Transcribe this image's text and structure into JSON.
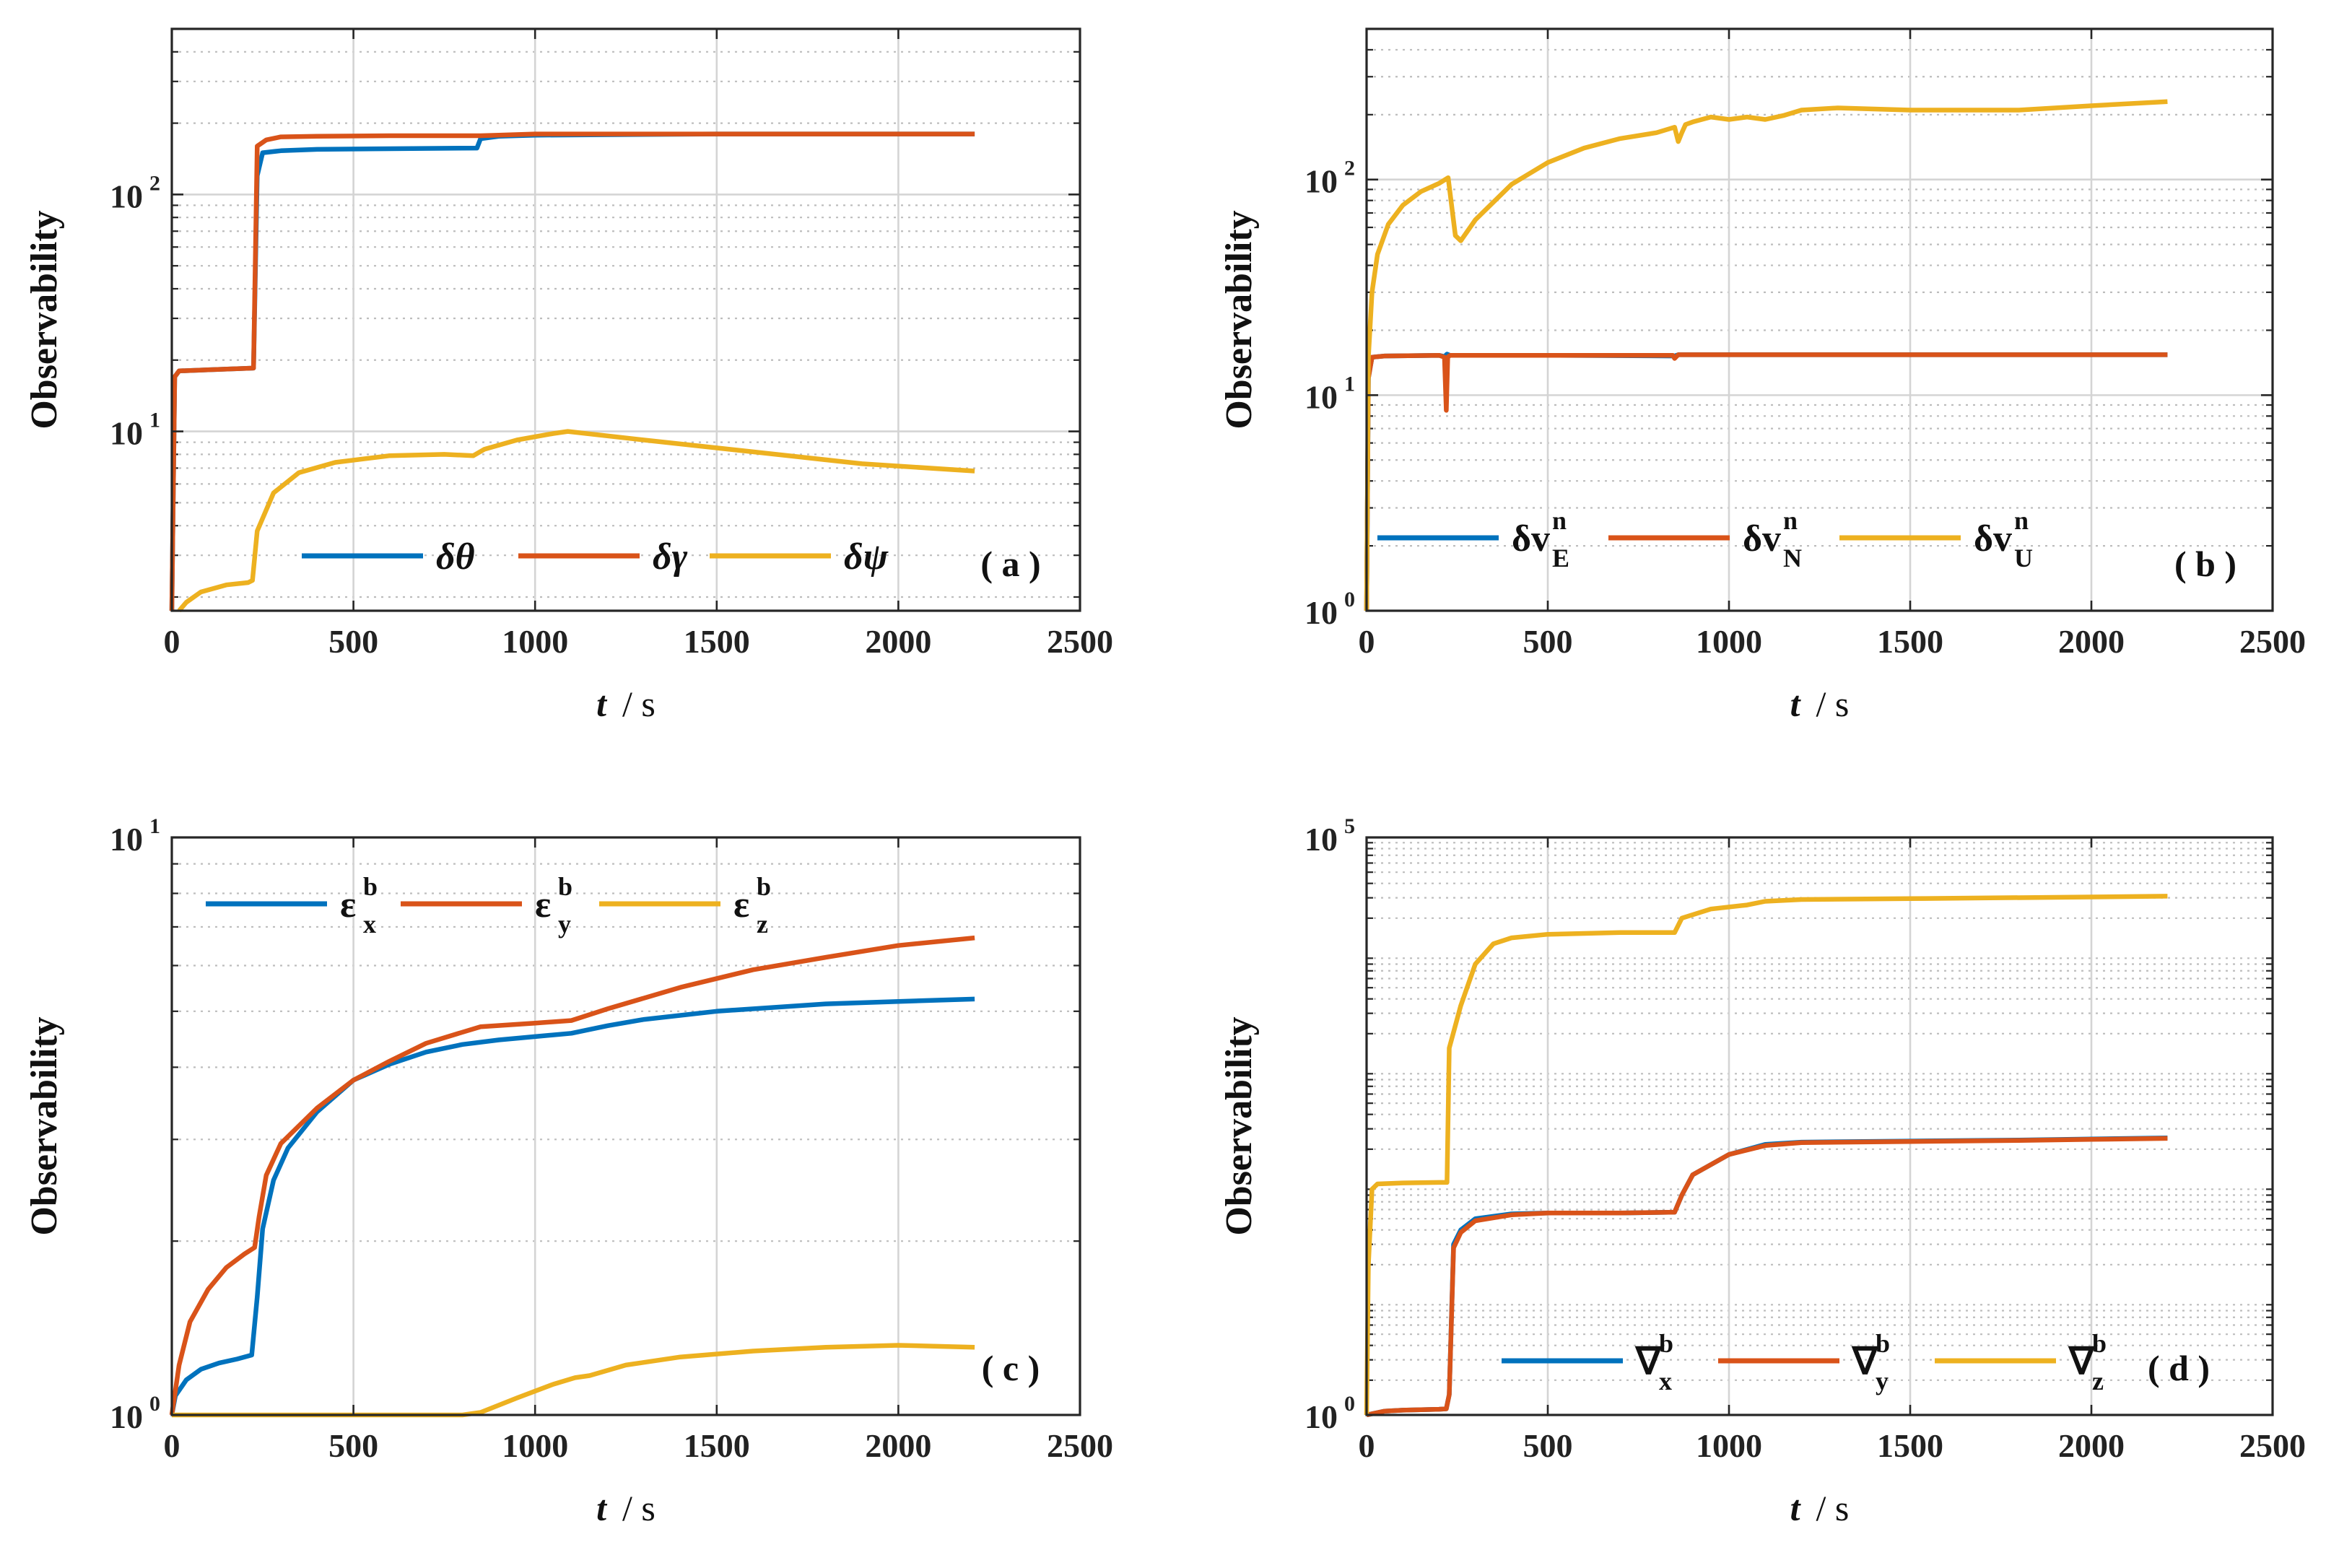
{
  "colors": {
    "blue": "#0072BD",
    "orange": "#D95319",
    "yellow": "#EDB120",
    "grid_major": "#d4d4d4",
    "grid_minor": "#bdbdbd",
    "axis": "#262626"
  },
  "chart_data": [
    {
      "id": "a",
      "type": "line",
      "scale_y": "log",
      "panel_label": "( a )",
      "ylabel": "Observability",
      "xlabel": {
        "var": "t",
        "unit": "/ s"
      },
      "xlim": [
        0,
        2500
      ],
      "ylim": [
        1.75,
        500
      ],
      "xticks": [
        0,
        500,
        1000,
        1500,
        2000,
        2500
      ],
      "yticks": [
        {
          "value": 10,
          "base": "10",
          "exp": "1"
        },
        {
          "value": 100,
          "base": "10",
          "exp": "2"
        }
      ],
      "legend": {
        "position": "bottom-right"
      },
      "series": [
        {
          "name": "δθ",
          "legend": {
            "main": "δθ",
            "sub": "",
            "sup": ""
          },
          "color": "#0072BD",
          "x": [
            0,
            8,
            20,
            100,
            225,
            235,
            250,
            300,
            400,
            600,
            840,
            850,
            900,
            1000,
            1500,
            2000,
            2210
          ],
          "y": [
            1.75,
            17,
            18,
            18.2,
            18.5,
            120,
            150,
            153,
            155,
            156,
            157,
            172,
            176,
            178,
            180,
            180,
            180
          ]
        },
        {
          "name": "δγ",
          "legend": {
            "main": "δγ",
            "sub": "",
            "sup": ""
          },
          "color": "#D95319",
          "x": [
            0,
            8,
            20,
            100,
            225,
            235,
            260,
            300,
            400,
            600,
            850,
            900,
            1000,
            1500,
            2000,
            2210
          ],
          "y": [
            1.75,
            17,
            18,
            18.2,
            18.5,
            160,
            170,
            175,
            176,
            177,
            177,
            178,
            180,
            180,
            180,
            180
          ]
        },
        {
          "name": "δψ",
          "legend": {
            "main": "δψ",
            "sub": "",
            "sup": ""
          },
          "color": "#EDB120",
          "x": [
            20,
            40,
            80,
            150,
            210,
            222,
            235,
            280,
            350,
            450,
            600,
            750,
            830,
            860,
            950,
            1050,
            1090,
            1300,
            1600,
            1900,
            2210
          ],
          "y": [
            1.75,
            1.9,
            2.1,
            2.25,
            2.3,
            2.35,
            3.8,
            5.5,
            6.7,
            7.4,
            7.9,
            8.0,
            7.9,
            8.4,
            9.2,
            9.8,
            10.0,
            9.2,
            8.2,
            7.3,
            6.8
          ]
        }
      ]
    },
    {
      "id": "b",
      "type": "line",
      "scale_y": "log",
      "panel_label": "( b )",
      "ylabel": "Observability",
      "xlabel": {
        "var": "t",
        "unit": "/ s"
      },
      "xlim": [
        0,
        2500
      ],
      "ylim": [
        1,
        500
      ],
      "xticks": [
        0,
        500,
        1000,
        1500,
        2000,
        2500
      ],
      "yticks": [
        {
          "value": 1,
          "base": "10",
          "exp": "0"
        },
        {
          "value": 10,
          "base": "10",
          "exp": "1"
        },
        {
          "value": 100,
          "base": "10",
          "exp": "2"
        }
      ],
      "legend": {
        "position": "bottom"
      },
      "series": [
        {
          "name": "δv_E^n",
          "legend": {
            "main": "δv",
            "sub": "E",
            "sup": "n"
          },
          "color": "#0072BD",
          "x": [
            0,
            5,
            15,
            50,
            200,
            215,
            222,
            230,
            500,
            850,
            860,
            1000,
            1500,
            2210
          ],
          "y": [
            1,
            12,
            15,
            15.2,
            15.3,
            15.1,
            15.5,
            15.3,
            15.3,
            15.2,
            15.4,
            15.4,
            15.4,
            15.4
          ]
        },
        {
          "name": "δv_N^n",
          "legend": {
            "main": "δv",
            "sub": "N",
            "sup": "n"
          },
          "color": "#D95319",
          "x": [
            0,
            5,
            15,
            50,
            200,
            215,
            220,
            224,
            230,
            500,
            845,
            850,
            860,
            1000,
            1500,
            2210
          ],
          "y": [
            1,
            12,
            15,
            15.2,
            15.3,
            15.0,
            8.5,
            15.0,
            15.3,
            15.3,
            15.3,
            14.8,
            15.4,
            15.4,
            15.4,
            15.4
          ]
        },
        {
          "name": "δv_U^n",
          "legend": {
            "main": "δv",
            "sub": "U",
            "sup": "n"
          },
          "color": "#EDB120",
          "x": [
            0,
            5,
            15,
            30,
            60,
            100,
            150,
            200,
            225,
            245,
            260,
            300,
            400,
            500,
            600,
            700,
            800,
            850,
            860,
            870,
            880,
            900,
            950,
            1000,
            1050,
            1100,
            1150,
            1200,
            1300,
            1500,
            1800,
            2000,
            2210
          ],
          "y": [
            1,
            15,
            30,
            45,
            62,
            76,
            88,
            96,
            102,
            55,
            52,
            65,
            95,
            120,
            140,
            155,
            165,
            175,
            150,
            165,
            180,
            185,
            195,
            190,
            195,
            190,
            198,
            210,
            215,
            210,
            210,
            220,
            230
          ]
        }
      ]
    },
    {
      "id": "c",
      "type": "line",
      "scale_y": "log",
      "panel_label": "( c )",
      "ylabel": "Observability",
      "xlabel": {
        "var": "t",
        "unit": "/ s"
      },
      "xlim": [
        0,
        2500
      ],
      "ylim": [
        1,
        10
      ],
      "xticks": [
        0,
        500,
        1000,
        1500,
        2000,
        2500
      ],
      "yticks": [
        {
          "value": 1,
          "base": "10",
          "exp": "0"
        },
        {
          "value": 10,
          "base": "10",
          "exp": "1"
        }
      ],
      "legend": {
        "position": "top-left"
      },
      "series": [
        {
          "name": "ε_x^b",
          "legend": {
            "main": "ε",
            "sub": "x",
            "sup": "b"
          },
          "color": "#0072BD",
          "x": [
            0,
            10,
            40,
            80,
            130,
            180,
            220,
            235,
            250,
            280,
            320,
            400,
            500,
            600,
            700,
            800,
            900,
            1000,
            1100,
            1200,
            1300,
            1500,
            1800,
            2000,
            2210
          ],
          "y": [
            1.0,
            1.08,
            1.15,
            1.2,
            1.23,
            1.25,
            1.27,
            1.6,
            2.1,
            2.55,
            2.9,
            3.35,
            3.8,
            4.05,
            4.25,
            4.38,
            4.46,
            4.52,
            4.58,
            4.72,
            4.84,
            5.0,
            5.15,
            5.2,
            5.25
          ]
        },
        {
          "name": "ε_y^b",
          "legend": {
            "main": "ε",
            "sub": "y",
            "sup": "b"
          },
          "color": "#D95319",
          "x": [
            0,
            20,
            50,
            100,
            150,
            200,
            228,
            240,
            260,
            300,
            400,
            500,
            600,
            700,
            800,
            850,
            1000,
            1100,
            1200,
            1400,
            1600,
            1800,
            2000,
            2210
          ],
          "y": [
            1.0,
            1.22,
            1.45,
            1.65,
            1.8,
            1.9,
            1.95,
            2.2,
            2.6,
            2.95,
            3.4,
            3.8,
            4.1,
            4.4,
            4.6,
            4.7,
            4.77,
            4.82,
            5.05,
            5.5,
            5.9,
            6.2,
            6.5,
            6.7
          ]
        },
        {
          "name": "ε_z^b",
          "legend": {
            "main": "ε",
            "sub": "z",
            "sup": "b"
          },
          "color": "#EDB120",
          "x": [
            0,
            100,
            300,
            500,
            700,
            800,
            850,
            950,
            1050,
            1110,
            1150,
            1250,
            1400,
            1600,
            1800,
            2000,
            2210
          ],
          "y": [
            1.0,
            0.995,
            0.99,
            0.99,
            0.993,
            0.998,
            1.01,
            1.07,
            1.13,
            1.16,
            1.17,
            1.22,
            1.26,
            1.29,
            1.31,
            1.32,
            1.31
          ]
        }
      ]
    },
    {
      "id": "d",
      "type": "line",
      "scale_y": "log",
      "panel_label": "( d )",
      "ylabel": "Observability",
      "xlabel": {
        "var": "t",
        "unit": "/ s"
      },
      "xlim": [
        0,
        2500
      ],
      "ylim": [
        1,
        100000
      ],
      "xticks": [
        0,
        500,
        1000,
        1500,
        2000,
        2500
      ],
      "yticks": [
        {
          "value": 1,
          "base": "10",
          "exp": "0"
        },
        {
          "value": 100000,
          "base": "10",
          "exp": "5"
        }
      ],
      "legend": {
        "position": "bottom-right"
      },
      "series": [
        {
          "name": "∇_x^b",
          "legend": {
            "main": "∇",
            "sub": "x",
            "sup": "b"
          },
          "color": "#0072BD",
          "x": [
            0,
            50,
            100,
            200,
            220,
            228,
            240,
            260,
            300,
            400,
            500,
            700,
            850,
            870,
            900,
            1000,
            1100,
            1200,
            1500,
            1800,
            2000,
            2210
          ],
          "y": [
            1.0,
            1.08,
            1.1,
            1.12,
            1.13,
            1.5,
            30,
            40,
            50,
            55,
            56,
            56,
            57,
            80,
            120,
            180,
            220,
            230,
            235,
            240,
            245,
            250
          ]
        },
        {
          "name": "∇_y^b",
          "legend": {
            "main": "∇",
            "sub": "y",
            "sup": "b"
          },
          "color": "#D95319",
          "x": [
            0,
            50,
            100,
            200,
            220,
            228,
            240,
            260,
            300,
            400,
            500,
            700,
            850,
            870,
            900,
            1000,
            1100,
            1200,
            1500,
            1800,
            2000,
            2210
          ],
          "y": [
            1.0,
            1.08,
            1.1,
            1.12,
            1.13,
            1.5,
            28,
            38,
            48,
            54,
            56,
            56,
            57,
            80,
            120,
            180,
            215,
            228,
            233,
            238,
            243,
            248
          ]
        },
        {
          "name": "∇_z^b",
          "legend": {
            "main": "∇",
            "sub": "z",
            "sup": "b"
          },
          "color": "#EDB120",
          "x": [
            0,
            5,
            15,
            30,
            100,
            200,
            222,
            228,
            260,
            300,
            350,
            400,
            500,
            700,
            850,
            870,
            950,
            1050,
            1100,
            1200,
            1500,
            2000,
            2210
          ],
          "y": [
            1.0,
            20,
            90,
            100,
            102,
            103,
            103,
            1500,
            3500,
            8000,
            12000,
            13500,
            14500,
            15000,
            15000,
            20000,
            24000,
            26000,
            28000,
            29000,
            29500,
            30500,
            31000
          ]
        }
      ]
    }
  ]
}
